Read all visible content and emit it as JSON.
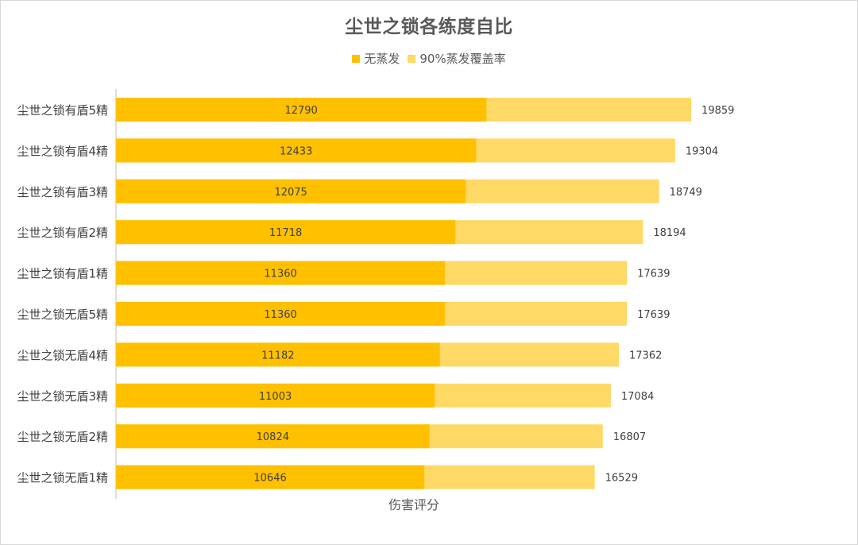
{
  "chart_data": {
    "type": "bar",
    "orientation": "horizontal",
    "title": "尘世之锁各练度自比",
    "xlabel": "伤害评分",
    "ylabel": "",
    "legend_position": "top",
    "grid": false,
    "xlim": [
      0,
      22000
    ],
    "categories": [
      "尘世之锁有盾5精",
      "尘世之锁有盾4精",
      "尘世之锁有盾3精",
      "尘世之锁有盾2精",
      "尘世之锁有盾1精",
      "尘世之锁无盾5精",
      "尘世之锁无盾4精",
      "尘世之锁无盾3精",
      "尘世之锁无盾2精",
      "尘世之锁无盾1精"
    ],
    "series": [
      {
        "name": "无蒸发",
        "color": "#FFC000",
        "values": [
          12790,
          12433,
          12075,
          11718,
          11360,
          11360,
          11182,
          11003,
          10824,
          10646
        ]
      },
      {
        "name": "90%蒸发覆盖率",
        "color": "#FFD966",
        "values": [
          19859,
          19304,
          18749,
          18194,
          17639,
          17639,
          17362,
          17084,
          16807,
          16529
        ]
      }
    ]
  }
}
